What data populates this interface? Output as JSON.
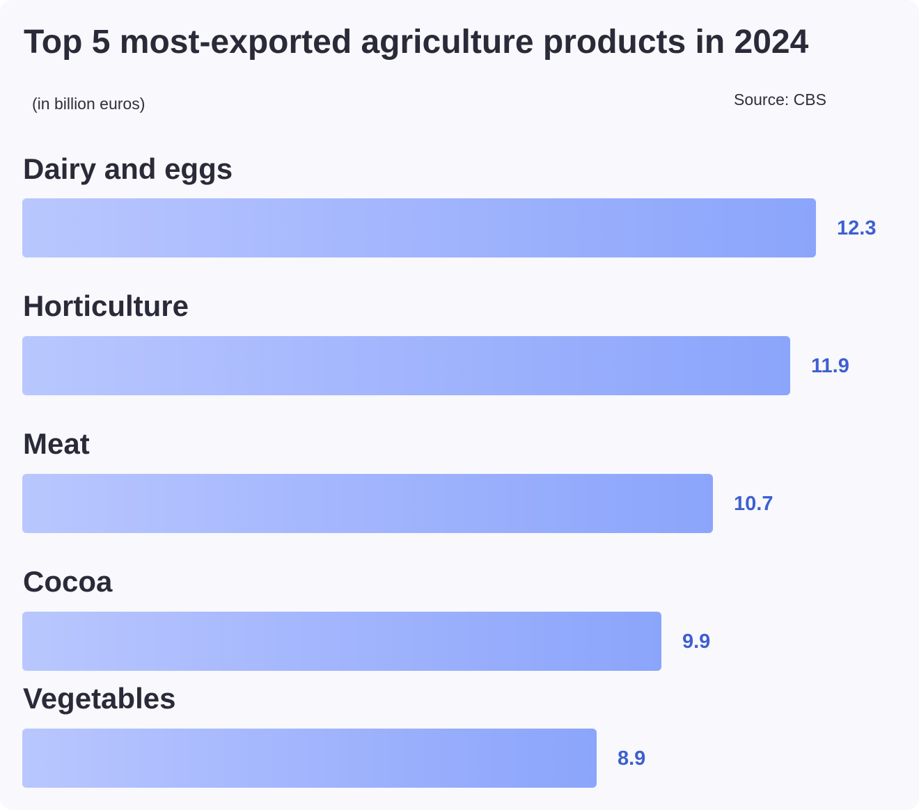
{
  "chart_data": {
    "type": "bar",
    "orientation": "horizontal",
    "title": "Top 5 most-exported agriculture products in 2024",
    "unit_label": "(in billion euros)",
    "source": "Source: CBS",
    "categories": [
      "Dairy and eggs",
      "Horticulture",
      "Meat",
      "Cocoa",
      "Vegetables"
    ],
    "values": [
      12.3,
      11.9,
      10.7,
      9.9,
      8.9
    ],
    "value_labels": [
      "12.3",
      "11.9",
      "10.7",
      "9.9",
      "8.9"
    ],
    "xlim": [
      0,
      13.5
    ],
    "grid": false,
    "bar_color_start": "#b9c7fe",
    "bar_color_end": "#8ba5fb",
    "value_label_color": "#3e5fd0"
  }
}
